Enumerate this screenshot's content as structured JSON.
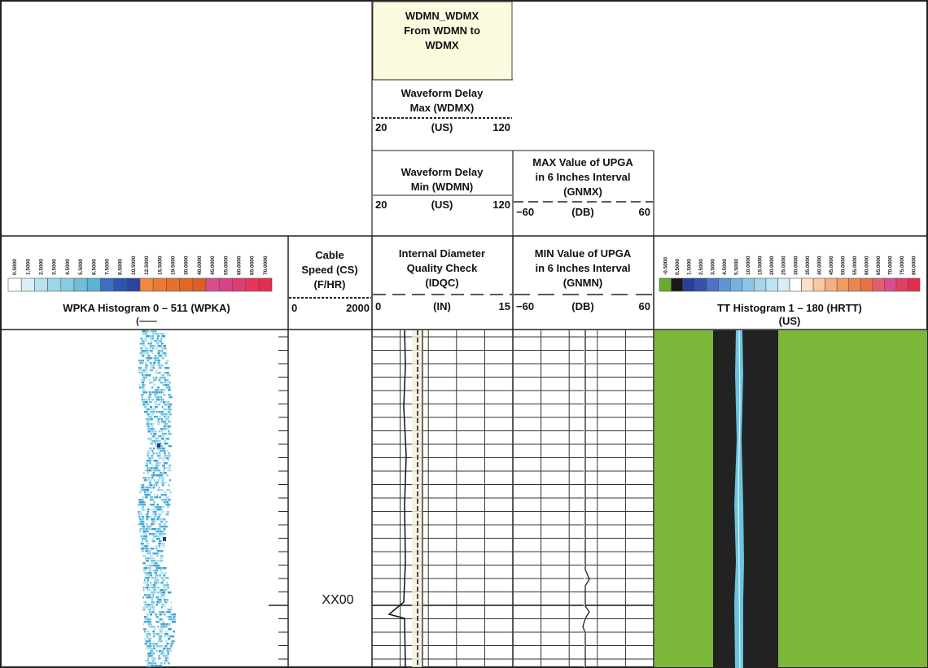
{
  "header": {
    "wdmn_wdmx_title": [
      "WDMN_WDMX",
      "From WDMN to",
      "WDMX"
    ],
    "wdmx": {
      "title": [
        "Waveform Delay",
        "Max (WDMX)"
      ],
      "min": "20",
      "unit": "(US)",
      "max": "120"
    },
    "wdmn": {
      "title": [
        "Waveform Delay",
        "Min (WDMN)"
      ],
      "min": "20",
      "unit": "(US)",
      "max": "120"
    },
    "gnmx": {
      "title": [
        "MAX Value of UPGA",
        "in 6 Inches Interval",
        "(GNMX)"
      ],
      "min": "−60",
      "unit": "(DB)",
      "max": "60"
    },
    "wpka": {
      "title": "WPKA Histogram 0 – 511 (WPKA)",
      "sub": "(——",
      "scale_labels": [
        "0.5000",
        "1.5000",
        "2.5000",
        "3.5000",
        "4.5000",
        "5.5000",
        "6.5000",
        "7.5000",
        "8.5000",
        "10.5000",
        "12.5000",
        "15.5000",
        "19.5000",
        "30.0000",
        "40.0000",
        "45.0000",
        "55.0000",
        "60.0000",
        "65.0000",
        "70.0000"
      ],
      "scale_colors": [
        "#ffffff",
        "#d8f0f4",
        "#b8e2ec",
        "#9dd6e6",
        "#86cde2",
        "#6ebfdc",
        "#5ab2d4",
        "#3c6fc2",
        "#2c55b0",
        "#2a44a0",
        "#f08a3c",
        "#ec7a34",
        "#e8702c",
        "#e46626",
        "#e05c22",
        "#dc4c8c",
        "#d8408a",
        "#e03c74",
        "#e8345c",
        "#e42c4c"
      ]
    },
    "cs": {
      "title": [
        "Cable",
        "Speed (CS)",
        "(F/HR)"
      ],
      "min": "0",
      "max": "2000"
    },
    "idqc": {
      "title": [
        "Internal Diameter",
        "Quality Check",
        "(IDQC)"
      ],
      "min": "0",
      "unit": "(IN)",
      "max": "15"
    },
    "gnmn": {
      "title": [
        "MIN Value of UPGA",
        "in 6 Inches Interval",
        "(GNMN)"
      ],
      "min": "−60",
      "unit": "(DB)",
      "max": "60"
    },
    "hrtt": {
      "title": "TT Histogram 1 – 180 (HRTT)",
      "unit": "(US)",
      "scale_labels": [
        "-0.5000",
        "0.5000",
        "1.5000",
        "2.5000",
        "3.5000",
        "4.5000",
        "5.5000",
        "10.0000",
        "15.0000",
        "20.0000",
        "25.0000",
        "30.0000",
        "35.0000",
        "40.0000",
        "45.0000",
        "50.0000",
        "55.0000",
        "60.0000",
        "65.0000",
        "70.0000",
        "75.0000",
        "80.0000"
      ],
      "scale_colors": [
        "#6aaa2a",
        "#1a1a1a",
        "#2a3e9c",
        "#3552b0",
        "#4a74c6",
        "#5f94d4",
        "#74b2dc",
        "#8cc6e4",
        "#a4d6ea",
        "#bce4f0",
        "#d6eef6",
        "#ffffff",
        "#fbe0c8",
        "#f8c8a2",
        "#f4b080",
        "#f09a64",
        "#ec8450",
        "#e87246",
        "#e25e72",
        "#dc4c8c",
        "#e04066",
        "#e42c4c"
      ]
    }
  },
  "depth_label": "XX00",
  "colors": {
    "green_bg": "#7db73a",
    "black_band": "#222222",
    "cyan": "#6cc3e0",
    "header_yellow": "#fbfbe0"
  }
}
